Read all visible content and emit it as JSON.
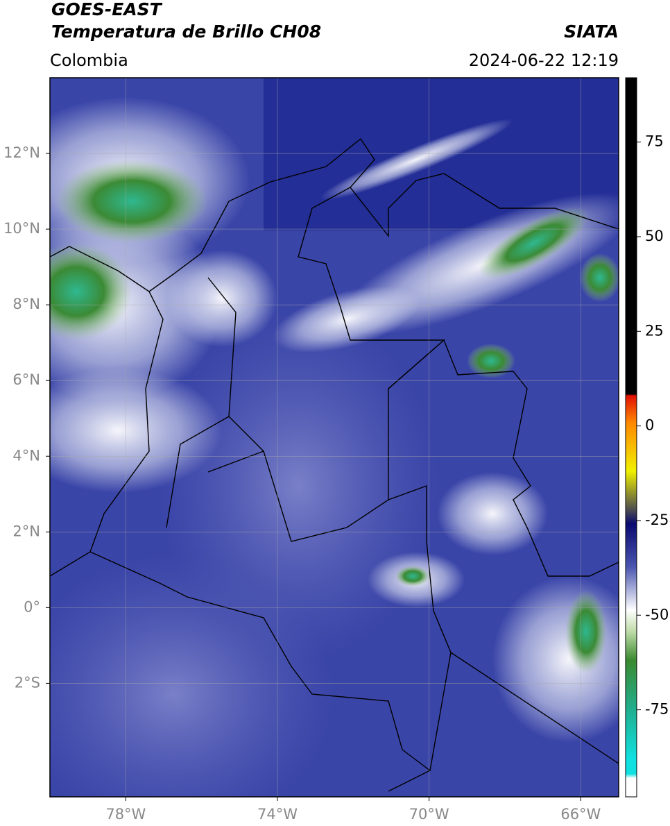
{
  "header": {
    "title": "GOES-EAST",
    "subtitle": "Temperatura de Brillo CH08",
    "source": "SIATA",
    "region": "Colombia",
    "datetime": "2024-06-22 12:19"
  },
  "map": {
    "xlim": [
      -80,
      -65
    ],
    "ylim": [
      -5,
      14
    ],
    "xticks": [
      {
        "value": -78,
        "label": "78°W"
      },
      {
        "value": -74,
        "label": "74°W"
      },
      {
        "value": -70,
        "label": "70°W"
      },
      {
        "value": -66,
        "label": "66°W"
      }
    ],
    "yticks": [
      {
        "value": 12,
        "label": "12°N"
      },
      {
        "value": 10,
        "label": "10°N"
      },
      {
        "value": 8,
        "label": "8°N"
      },
      {
        "value": 6,
        "label": "6°N"
      },
      {
        "value": 4,
        "label": "4°N"
      },
      {
        "value": 2,
        "label": "2°N"
      },
      {
        "value": 0,
        "label": "0°"
      },
      {
        "value": -2,
        "label": "2°S"
      }
    ]
  },
  "colorbar": {
    "lim": [
      -98,
      92
    ],
    "ticks": [
      75,
      50,
      25,
      0,
      -25,
      -50,
      -75
    ]
  }
}
